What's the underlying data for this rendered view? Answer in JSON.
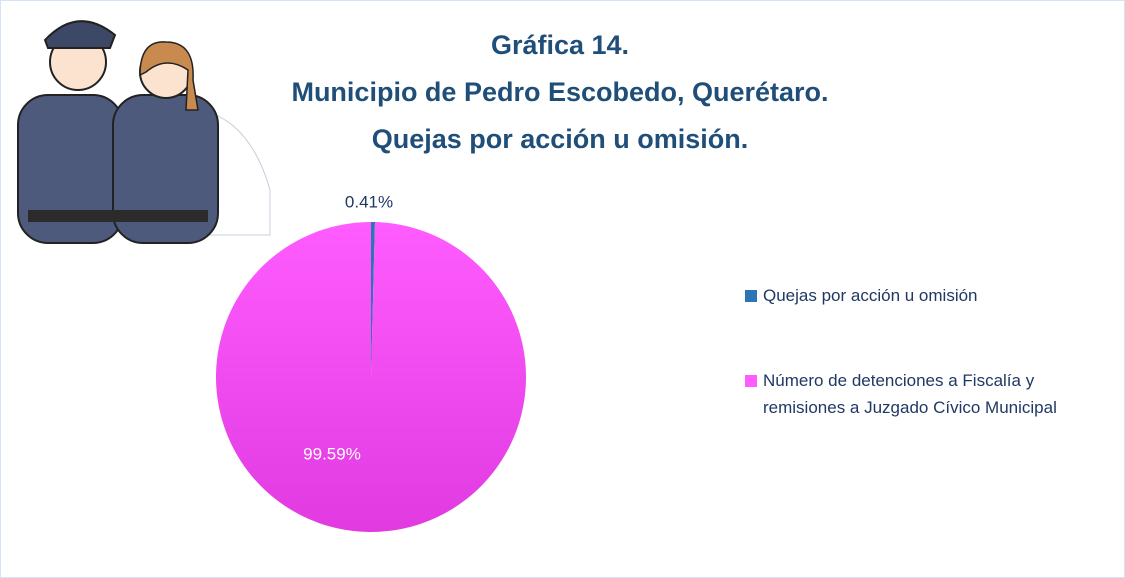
{
  "chart_data": {
    "type": "pie",
    "title": [
      "Gráfica 14.",
      "Municipio de Pedro Escobedo, Querétaro.",
      "Quejas por acción u omisión."
    ],
    "categories": [
      "Quejas por acción u omisión",
      "Número de detenciones a Fiscalía y remisiones a Juzgado Cívico Municipal"
    ],
    "values": [
      0.41,
      99.59
    ],
    "value_labels": [
      "0.41%",
      "99.59%"
    ],
    "colors": [
      "#2e75b6",
      "#ff5cff"
    ],
    "legend": "right"
  }
}
